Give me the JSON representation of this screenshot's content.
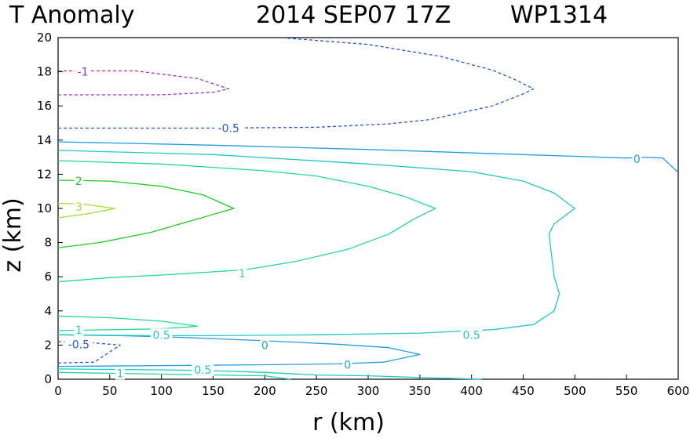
{
  "chart_data": {
    "type": "contour",
    "title": {
      "field": "T Anomaly",
      "date": "2014 SEP07 17Z",
      "storm": "WP1314"
    },
    "xlabel": "r (km)",
    "ylabel": "z (km)",
    "xlim": [
      0,
      600
    ],
    "ylim": [
      0,
      20
    ],
    "x_ticks": [
      0,
      50,
      100,
      150,
      200,
      250,
      300,
      350,
      400,
      450,
      500,
      550,
      600
    ],
    "y_ticks": [
      0,
      2,
      4,
      6,
      8,
      10,
      12,
      14,
      16,
      18,
      20
    ],
    "grid": false,
    "colors": {
      "neg1": "#9c2ed0",
      "neg05": "#2255d8",
      "zero": "#1e9ee0",
      "pos05": "#20c8c8",
      "pos1": "#20d898",
      "pos2": "#22cc22",
      "pos3": "#a0e030"
    },
    "contours": [
      {
        "level": -1,
        "label": "-1",
        "color": "#9c2ed0",
        "dashed": true,
        "lines": [
          [
            [
              0,
              18.05
            ],
            [
              75,
              18.05
            ],
            [
              135,
              17.6
            ],
            [
              165,
              17.0
            ],
            [
              150,
              16.8
            ],
            [
              100,
              16.65
            ],
            [
              0,
              16.65
            ]
          ]
        ]
      },
      {
        "level": -0.5,
        "label": "-0.5",
        "color": "#2255d8",
        "dashed": true,
        "lines": [
          [
            [
              0,
              14.7
            ],
            [
              150,
              14.7
            ],
            [
              250,
              14.75
            ],
            [
              320,
              14.95
            ],
            [
              360,
              15.2
            ],
            [
              420,
              16.0
            ],
            [
              450,
              16.7
            ],
            [
              460,
              17.0
            ],
            [
              440,
              17.6
            ],
            [
              420,
              18.1
            ],
            [
              370,
              18.9
            ],
            [
              300,
              19.6
            ],
            [
              215,
              20.0
            ]
          ],
          [
            [
              0,
              2.2
            ],
            [
              20,
              2.2
            ],
            [
              60,
              2.0
            ],
            [
              35,
              1.0
            ],
            [
              0,
              0.95
            ]
          ]
        ]
      },
      {
        "level": 0,
        "label": "0",
        "color": "#1e9ee0",
        "dashed": false,
        "lines": [
          [
            [
              0,
              13.9
            ],
            [
              150,
              13.7
            ],
            [
              300,
              13.45
            ],
            [
              450,
              13.15
            ],
            [
              550,
              12.95
            ],
            [
              570,
              13.0
            ],
            [
              585,
              12.95
            ],
            [
              600,
              12.1
            ]
          ],
          [
            [
              0,
              2.6
            ],
            [
              60,
              2.55
            ],
            [
              120,
              2.45
            ],
            [
              200,
              2.25
            ],
            [
              270,
              2.05
            ],
            [
              320,
              1.85
            ],
            [
              350,
              1.45
            ],
            [
              315,
              1.0
            ],
            [
              270,
              0.9
            ],
            [
              200,
              0.85
            ],
            [
              100,
              0.8
            ],
            [
              0,
              0.75
            ]
          ]
        ]
      },
      {
        "level": 0.5,
        "label": "0.5",
        "color": "#20c8c8",
        "dashed": false,
        "lines": [
          [
            [
              0,
              13.4
            ],
            [
              150,
              13.15
            ],
            [
              300,
              12.6
            ],
            [
              400,
              12.15
            ],
            [
              450,
              11.6
            ],
            [
              480,
              10.9
            ],
            [
              500,
              10.0
            ],
            [
              480,
              9.1
            ],
            [
              475,
              8.5
            ],
            [
              480,
              6.0
            ],
            [
              485,
              5.0
            ],
            [
              480,
              4.0
            ],
            [
              460,
              3.2
            ],
            [
              420,
              2.9
            ],
            [
              350,
              2.7
            ],
            [
              250,
              2.6
            ],
            [
              150,
              2.55
            ],
            [
              100,
              2.55
            ],
            [
              0,
              2.6
            ]
          ],
          [
            [
              0,
              0.6
            ],
            [
              100,
              0.55
            ],
            [
              150,
              0.5
            ],
            [
              200,
              0.4
            ],
            [
              250,
              0.25
            ],
            [
              300,
              0.2
            ],
            [
              350,
              0.1
            ],
            [
              410,
              0.0
            ]
          ]
        ]
      },
      {
        "level": 1,
        "label": "1",
        "color": "#20d898",
        "dashed": false,
        "lines": [
          [
            [
              0,
              12.8
            ],
            [
              100,
              12.6
            ],
            [
              200,
              12.2
            ],
            [
              250,
              11.9
            ],
            [
              300,
              11.3
            ],
            [
              335,
              10.7
            ],
            [
              365,
              10.0
            ],
            [
              345,
              9.4
            ],
            [
              320,
              8.5
            ],
            [
              280,
              7.6
            ],
            [
              230,
              6.9
            ],
            [
              180,
              6.4
            ],
            [
              100,
              6.1
            ],
            [
              50,
              5.95
            ],
            [
              0,
              5.7
            ]
          ],
          [
            [
              0,
              3.7
            ],
            [
              50,
              3.6
            ],
            [
              100,
              3.4
            ],
            [
              135,
              3.1
            ],
            [
              100,
              2.95
            ],
            [
              0,
              2.85
            ]
          ],
          [
            [
              0,
              0.4
            ],
            [
              50,
              0.35
            ],
            [
              100,
              0.3
            ],
            [
              150,
              0.25
            ],
            [
              200,
              0.2
            ],
            [
              225,
              0.0
            ]
          ]
        ]
      },
      {
        "level": 2,
        "label": "2",
        "color": "#22cc22",
        "dashed": false,
        "lines": [
          [
            [
              0,
              11.65
            ],
            [
              50,
              11.6
            ],
            [
              100,
              11.3
            ],
            [
              140,
              10.8
            ],
            [
              170,
              10.0
            ],
            [
              130,
              9.3
            ],
            [
              90,
              8.6
            ],
            [
              40,
              8.0
            ],
            [
              0,
              7.7
            ]
          ]
        ]
      },
      {
        "level": 3,
        "label": "3",
        "color": "#a0e030",
        "dashed": false,
        "lines": [
          [
            [
              0,
              10.3
            ],
            [
              25,
              10.25
            ],
            [
              55,
              10.0
            ],
            [
              30,
              9.7
            ],
            [
              0,
              9.45
            ]
          ]
        ]
      }
    ],
    "contour_labels": [
      {
        "text": "-1",
        "r": 24,
        "z": 18.0,
        "color": "#9c2ed0"
      },
      {
        "text": "-0.5",
        "r": 165,
        "z": 14.7,
        "color": "#2255d8"
      },
      {
        "text": "-0.5",
        "r": 20,
        "z": 2.05,
        "color": "#2255d8"
      },
      {
        "text": "0",
        "r": 560,
        "z": 12.9,
        "color": "#1e9ee0"
      },
      {
        "text": "0",
        "r": 200,
        "z": 2.0,
        "color": "#1e9ee0"
      },
      {
        "text": "0",
        "r": 280,
        "z": 0.85,
        "color": "#1e9ee0"
      },
      {
        "text": "0.5",
        "r": 100,
        "z": 2.6,
        "color": "#20c8c8"
      },
      {
        "text": "0.5",
        "r": 400,
        "z": 2.6,
        "color": "#20c8c8"
      },
      {
        "text": "0.5",
        "r": 140,
        "z": 0.55,
        "color": "#20c8c8"
      },
      {
        "text": "1",
        "r": 178,
        "z": 6.2,
        "color": "#20d898"
      },
      {
        "text": "1",
        "r": 20,
        "z": 2.9,
        "color": "#20d898"
      },
      {
        "text": "1",
        "r": 60,
        "z": 0.35,
        "color": "#20d898"
      },
      {
        "text": "2",
        "r": 20,
        "z": 11.6,
        "color": "#22cc22"
      },
      {
        "text": "3",
        "r": 20,
        "z": 10.1,
        "color": "#a0e030"
      }
    ]
  }
}
